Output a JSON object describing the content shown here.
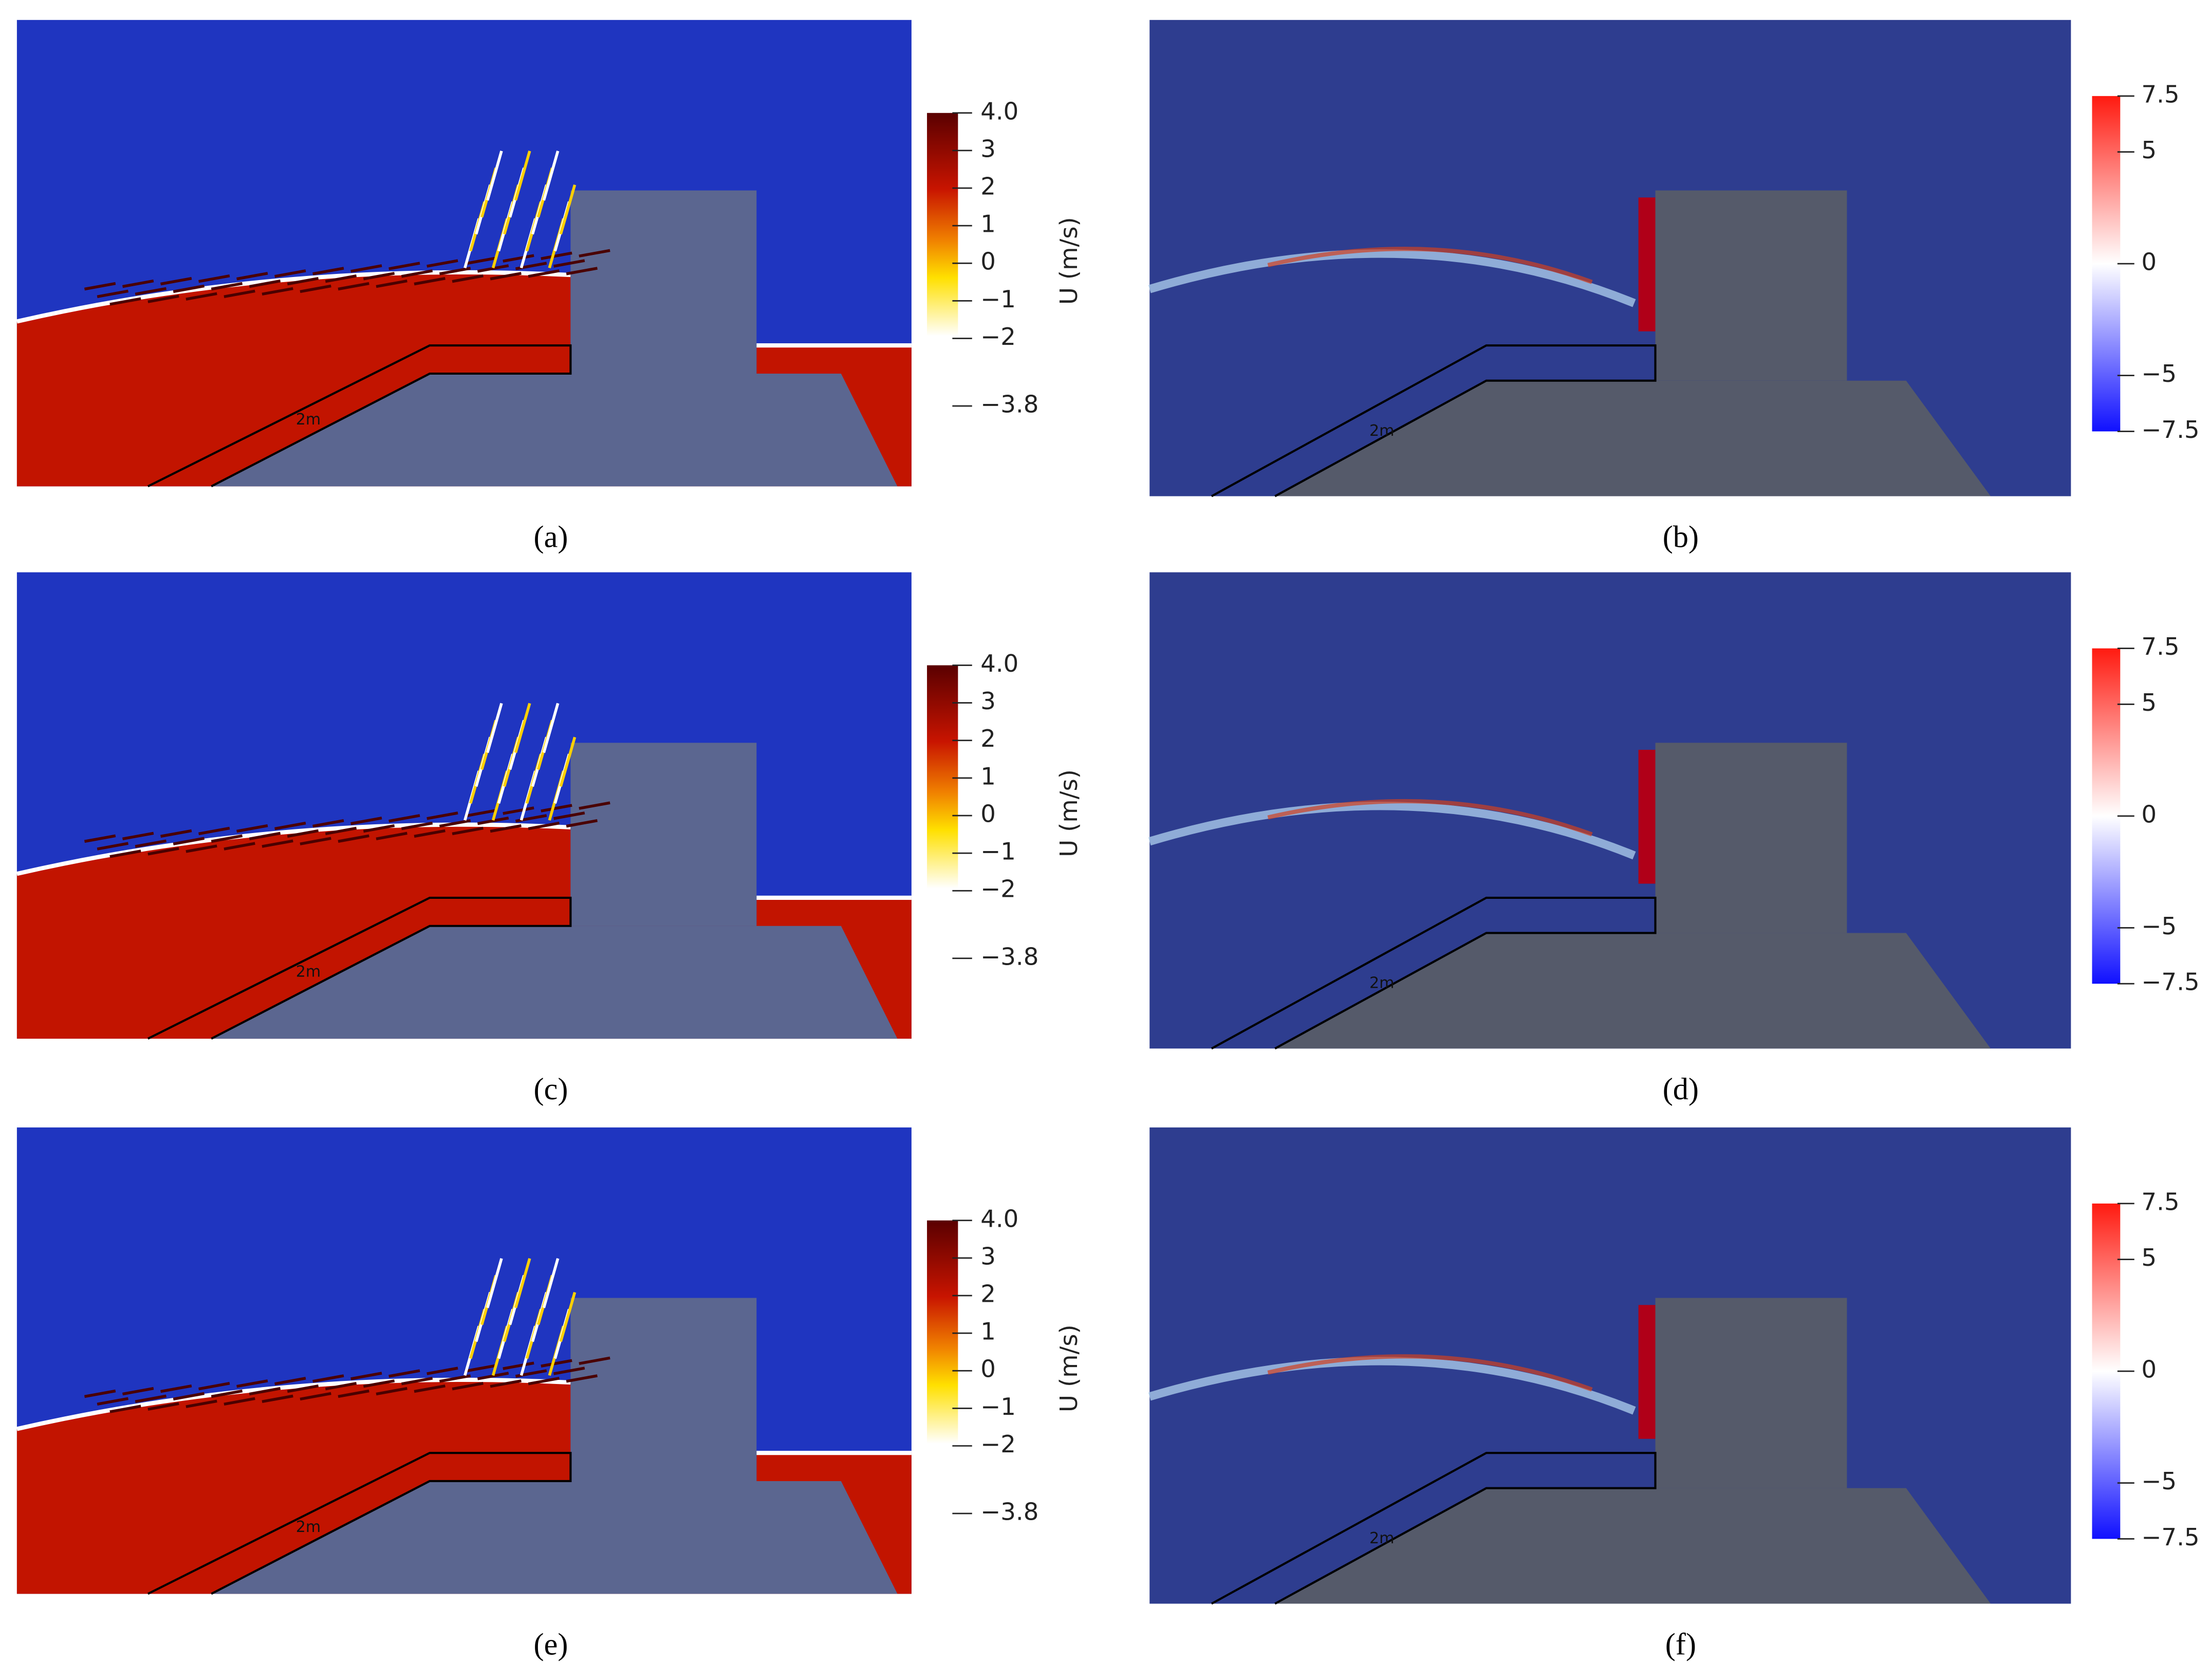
{
  "left_colorbar": {
    "title": "U (m/s)",
    "range": [
      -3.8,
      4
    ],
    "ticks": [
      {
        "value": 4,
        "label": "4.0"
      },
      3,
      2,
      1,
      0,
      {
        "value": -1,
        "label": "−1"
      },
      {
        "value": -2,
        "label": "−2"
      },
      {
        "value": -3.8,
        "label": "−3.8"
      }
    ]
  },
  "right_colorbar": {
    "range": [
      -7.5,
      7.5
    ],
    "ticks": [
      {
        "value": 7.5,
        "label": "7.5"
      },
      5,
      0,
      {
        "value": -5,
        "label": "−5"
      },
      {
        "value": -7.5,
        "label": "−7.5"
      }
    ]
  },
  "panels": [
    {
      "caption": "(a)",
      "scale_label": "2m"
    },
    {
      "caption": "(b)",
      "scale_label": "2m"
    },
    {
      "caption": "(c)",
      "scale_label": "2m"
    },
    {
      "caption": "(d)",
      "scale_label": "2m"
    },
    {
      "caption": "(e)",
      "scale_label": "2m"
    },
    {
      "caption": "(f)",
      "scale_label": "2m"
    }
  ]
}
